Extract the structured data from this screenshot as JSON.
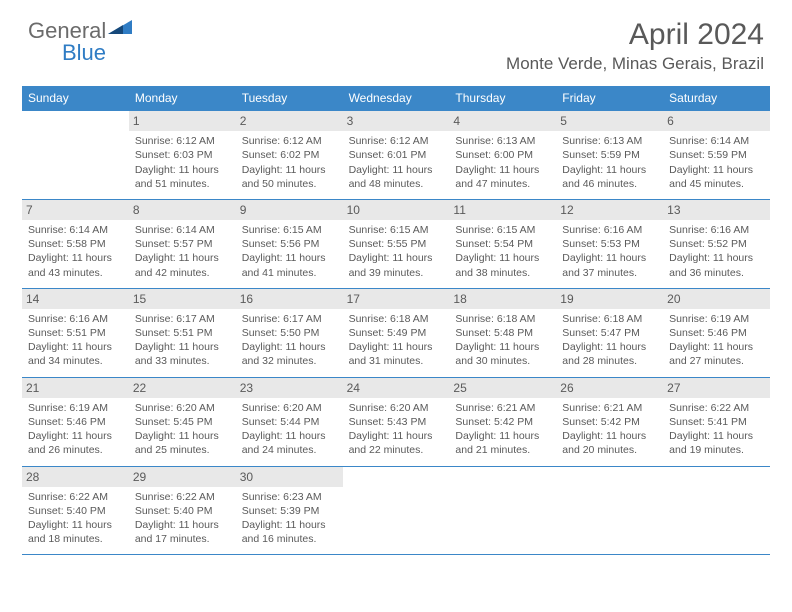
{
  "logo": {
    "word1": "General",
    "word2": "Blue"
  },
  "title": "April 2024",
  "location": "Monte Verde, Minas Gerais, Brazil",
  "colors": {
    "header_bg": "#3b87c8",
    "daynum_bg": "#e8e8e8",
    "text": "#5a5a5a",
    "border": "#3b87c8",
    "logo_gray": "#6b6b6b",
    "logo_blue": "#2f7cc4"
  },
  "weekdays": [
    "Sunday",
    "Monday",
    "Tuesday",
    "Wednesday",
    "Thursday",
    "Friday",
    "Saturday"
  ],
  "weeks": [
    [
      null,
      {
        "n": "1",
        "sr": "Sunrise: 6:12 AM",
        "ss": "Sunset: 6:03 PM",
        "d1": "Daylight: 11 hours",
        "d2": "and 51 minutes."
      },
      {
        "n": "2",
        "sr": "Sunrise: 6:12 AM",
        "ss": "Sunset: 6:02 PM",
        "d1": "Daylight: 11 hours",
        "d2": "and 50 minutes."
      },
      {
        "n": "3",
        "sr": "Sunrise: 6:12 AM",
        "ss": "Sunset: 6:01 PM",
        "d1": "Daylight: 11 hours",
        "d2": "and 48 minutes."
      },
      {
        "n": "4",
        "sr": "Sunrise: 6:13 AM",
        "ss": "Sunset: 6:00 PM",
        "d1": "Daylight: 11 hours",
        "d2": "and 47 minutes."
      },
      {
        "n": "5",
        "sr": "Sunrise: 6:13 AM",
        "ss": "Sunset: 5:59 PM",
        "d1": "Daylight: 11 hours",
        "d2": "and 46 minutes."
      },
      {
        "n": "6",
        "sr": "Sunrise: 6:14 AM",
        "ss": "Sunset: 5:59 PM",
        "d1": "Daylight: 11 hours",
        "d2": "and 45 minutes."
      }
    ],
    [
      {
        "n": "7",
        "sr": "Sunrise: 6:14 AM",
        "ss": "Sunset: 5:58 PM",
        "d1": "Daylight: 11 hours",
        "d2": "and 43 minutes."
      },
      {
        "n": "8",
        "sr": "Sunrise: 6:14 AM",
        "ss": "Sunset: 5:57 PM",
        "d1": "Daylight: 11 hours",
        "d2": "and 42 minutes."
      },
      {
        "n": "9",
        "sr": "Sunrise: 6:15 AM",
        "ss": "Sunset: 5:56 PM",
        "d1": "Daylight: 11 hours",
        "d2": "and 41 minutes."
      },
      {
        "n": "10",
        "sr": "Sunrise: 6:15 AM",
        "ss": "Sunset: 5:55 PM",
        "d1": "Daylight: 11 hours",
        "d2": "and 39 minutes."
      },
      {
        "n": "11",
        "sr": "Sunrise: 6:15 AM",
        "ss": "Sunset: 5:54 PM",
        "d1": "Daylight: 11 hours",
        "d2": "and 38 minutes."
      },
      {
        "n": "12",
        "sr": "Sunrise: 6:16 AM",
        "ss": "Sunset: 5:53 PM",
        "d1": "Daylight: 11 hours",
        "d2": "and 37 minutes."
      },
      {
        "n": "13",
        "sr": "Sunrise: 6:16 AM",
        "ss": "Sunset: 5:52 PM",
        "d1": "Daylight: 11 hours",
        "d2": "and 36 minutes."
      }
    ],
    [
      {
        "n": "14",
        "sr": "Sunrise: 6:16 AM",
        "ss": "Sunset: 5:51 PM",
        "d1": "Daylight: 11 hours",
        "d2": "and 34 minutes."
      },
      {
        "n": "15",
        "sr": "Sunrise: 6:17 AM",
        "ss": "Sunset: 5:51 PM",
        "d1": "Daylight: 11 hours",
        "d2": "and 33 minutes."
      },
      {
        "n": "16",
        "sr": "Sunrise: 6:17 AM",
        "ss": "Sunset: 5:50 PM",
        "d1": "Daylight: 11 hours",
        "d2": "and 32 minutes."
      },
      {
        "n": "17",
        "sr": "Sunrise: 6:18 AM",
        "ss": "Sunset: 5:49 PM",
        "d1": "Daylight: 11 hours",
        "d2": "and 31 minutes."
      },
      {
        "n": "18",
        "sr": "Sunrise: 6:18 AM",
        "ss": "Sunset: 5:48 PM",
        "d1": "Daylight: 11 hours",
        "d2": "and 30 minutes."
      },
      {
        "n": "19",
        "sr": "Sunrise: 6:18 AM",
        "ss": "Sunset: 5:47 PM",
        "d1": "Daylight: 11 hours",
        "d2": "and 28 minutes."
      },
      {
        "n": "20",
        "sr": "Sunrise: 6:19 AM",
        "ss": "Sunset: 5:46 PM",
        "d1": "Daylight: 11 hours",
        "d2": "and 27 minutes."
      }
    ],
    [
      {
        "n": "21",
        "sr": "Sunrise: 6:19 AM",
        "ss": "Sunset: 5:46 PM",
        "d1": "Daylight: 11 hours",
        "d2": "and 26 minutes."
      },
      {
        "n": "22",
        "sr": "Sunrise: 6:20 AM",
        "ss": "Sunset: 5:45 PM",
        "d1": "Daylight: 11 hours",
        "d2": "and 25 minutes."
      },
      {
        "n": "23",
        "sr": "Sunrise: 6:20 AM",
        "ss": "Sunset: 5:44 PM",
        "d1": "Daylight: 11 hours",
        "d2": "and 24 minutes."
      },
      {
        "n": "24",
        "sr": "Sunrise: 6:20 AM",
        "ss": "Sunset: 5:43 PM",
        "d1": "Daylight: 11 hours",
        "d2": "and 22 minutes."
      },
      {
        "n": "25",
        "sr": "Sunrise: 6:21 AM",
        "ss": "Sunset: 5:42 PM",
        "d1": "Daylight: 11 hours",
        "d2": "and 21 minutes."
      },
      {
        "n": "26",
        "sr": "Sunrise: 6:21 AM",
        "ss": "Sunset: 5:42 PM",
        "d1": "Daylight: 11 hours",
        "d2": "and 20 minutes."
      },
      {
        "n": "27",
        "sr": "Sunrise: 6:22 AM",
        "ss": "Sunset: 5:41 PM",
        "d1": "Daylight: 11 hours",
        "d2": "and 19 minutes."
      }
    ],
    [
      {
        "n": "28",
        "sr": "Sunrise: 6:22 AM",
        "ss": "Sunset: 5:40 PM",
        "d1": "Daylight: 11 hours",
        "d2": "and 18 minutes."
      },
      {
        "n": "29",
        "sr": "Sunrise: 6:22 AM",
        "ss": "Sunset: 5:40 PM",
        "d1": "Daylight: 11 hours",
        "d2": "and 17 minutes."
      },
      {
        "n": "30",
        "sr": "Sunrise: 6:23 AM",
        "ss": "Sunset: 5:39 PM",
        "d1": "Daylight: 11 hours",
        "d2": "and 16 minutes."
      },
      null,
      null,
      null,
      null
    ]
  ]
}
